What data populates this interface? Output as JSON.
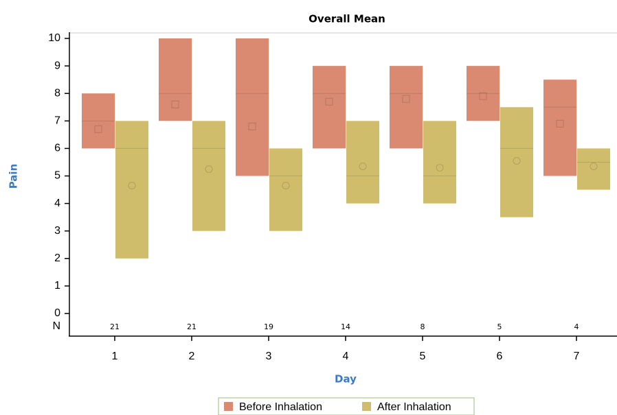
{
  "chart_data": {
    "type": "range-bar",
    "title": "Overall Mean",
    "x_label": "Day",
    "y_label": "Pain",
    "categories": [
      "1",
      "2",
      "3",
      "4",
      "5",
      "6",
      "7"
    ],
    "ylim": [
      0,
      10
    ],
    "yticks": [
      0,
      1,
      2,
      3,
      4,
      5,
      6,
      7,
      8,
      9,
      10
    ],
    "n_label": "N",
    "n_values": [
      21,
      21,
      19,
      14,
      8,
      5,
      4
    ],
    "series": [
      {
        "name": "Before Inhalation",
        "color": "#d98a70",
        "marker": "square",
        "low": [
          6,
          7,
          5,
          6,
          6,
          7,
          5
        ],
        "high": [
          8,
          10,
          10,
          9,
          9,
          9,
          8.5
        ],
        "median": [
          7,
          8,
          8,
          8,
          8,
          8,
          7.5
        ],
        "mean": [
          6.7,
          7.6,
          6.8,
          7.7,
          7.8,
          7.9,
          6.9
        ]
      },
      {
        "name": "After Inhalation",
        "color": "#cfbd6c",
        "marker": "circle",
        "low": [
          2,
          3,
          3,
          4,
          4,
          3.5,
          4.5
        ],
        "high": [
          7,
          7,
          6,
          7,
          7,
          7.5,
          6
        ],
        "median": [
          6,
          6,
          5,
          5,
          5,
          6,
          5.5
        ],
        "mean": [
          4.65,
          5.25,
          4.65,
          5.35,
          5.3,
          5.55,
          5.35
        ]
      }
    ]
  }
}
